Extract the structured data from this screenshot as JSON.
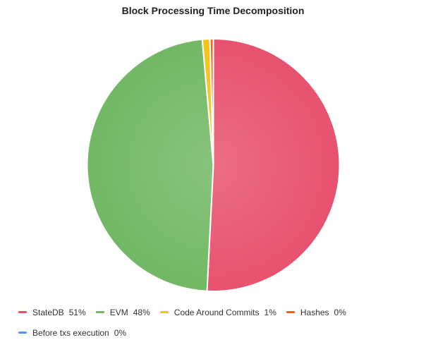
{
  "chart_data": {
    "type": "pie",
    "title": "Block Processing Time Decomposition",
    "slices": [
      {
        "label": "StateDB",
        "pct_label": "51%",
        "value": 50.8,
        "color": "#e8526e"
      },
      {
        "label": "EVM",
        "pct_label": "48%",
        "value": 47.8,
        "color": "#72b865"
      },
      {
        "label": "Code Around Commits",
        "pct_label": "1%",
        "value": 0.97,
        "color": "#f2c318"
      },
      {
        "label": "Hashes",
        "pct_label": "0%",
        "value": 0.43,
        "color": "#f2611d"
      },
      {
        "label": "Before txs execution",
        "pct_label": "0%",
        "value": 0.0,
        "color": "#5794f2"
      }
    ],
    "legend_position": "bottom"
  }
}
